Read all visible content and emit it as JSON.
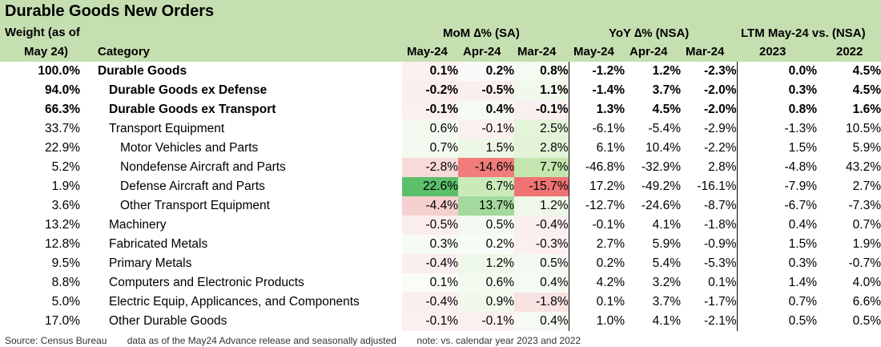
{
  "title": "Durable Goods New Orders",
  "header": {
    "weight_line1": "Weight (as of",
    "weight_line2": "May 24)",
    "category": "Category",
    "mom_group": "MoM ∆% (SA)",
    "yoy_group": "YoY ∆% (NSA)",
    "ltm_group": "LTM May-24 vs. (NSA)",
    "mom_cols": [
      "May-24",
      "Apr-24",
      "Mar-24"
    ],
    "yoy_cols": [
      "May-24",
      "Apr-24",
      "Mar-24"
    ],
    "ltm_cols": [
      "2023",
      "2022"
    ]
  },
  "rows": [
    {
      "weight": "100.0%",
      "category": "Durable Goods",
      "indent": 0,
      "bold": true,
      "mom": [
        "0.1%",
        "0.2%",
        "0.8%"
      ],
      "yoy": [
        "-1.2%",
        "1.2%",
        "-2.3%"
      ],
      "ltm": [
        "0.0%",
        "4.5%"
      ],
      "mom_bg": [
        "#fbf1f1",
        "#fafbf9",
        "#f5fbf1"
      ]
    },
    {
      "weight": "94.0%",
      "category": "Durable Goods ex Defense",
      "indent": 1,
      "bold": true,
      "mom": [
        "-0.2%",
        "-0.5%",
        "1.1%"
      ],
      "yoy": [
        "-1.4%",
        "3.7%",
        "-2.0%"
      ],
      "ltm": [
        "0.3%",
        "4.5%"
      ],
      "mom_bg": [
        "#fbeeee",
        "#fbeeee",
        "#f1f9ec"
      ]
    },
    {
      "weight": "66.3%",
      "category": "Durable Goods ex Transport",
      "indent": 1,
      "bold": true,
      "mom": [
        "-0.1%",
        "0.4%",
        "-0.1%"
      ],
      "yoy": [
        "1.3%",
        "4.5%",
        "-2.0%"
      ],
      "ltm": [
        "0.8%",
        "1.6%"
      ],
      "mom_bg": [
        "#fbf0f0",
        "#f5fbf2",
        "#fbf0f0"
      ]
    },
    {
      "weight": "33.7%",
      "category": "Transport Equipment",
      "indent": 1,
      "bold": false,
      "mom": [
        "0.6%",
        "-0.1%",
        "2.5%"
      ],
      "yoy": [
        "-6.1%",
        "-5.4%",
        "-2.9%"
      ],
      "ltm": [
        "-1.3%",
        "10.5%"
      ],
      "mom_bg": [
        "#f4faf0",
        "#fbf0f0",
        "#e4f4da"
      ]
    },
    {
      "weight": "22.9%",
      "category": "Motor Vehicles and Parts",
      "indent": 2,
      "bold": false,
      "mom": [
        "0.7%",
        "1.5%",
        "2.8%"
      ],
      "yoy": [
        "6.1%",
        "10.4%",
        "-2.2%"
      ],
      "ltm": [
        "1.5%",
        "5.9%"
      ],
      "mom_bg": [
        "#f3faef",
        "#ecf7e5",
        "#e2f3d8"
      ]
    },
    {
      "weight": "5.2%",
      "category": "Nondefense Aircraft and Parts",
      "indent": 2,
      "bold": false,
      "mom": [
        "-2.8%",
        "-14.6%",
        "7.7%"
      ],
      "yoy": [
        "-46.8%",
        "-32.9%",
        "2.8%"
      ],
      "ltm": [
        "-4.8%",
        "43.2%"
      ],
      "mom_bg": [
        "#f8dada",
        "#f07c7c",
        "#c2e6ad"
      ]
    },
    {
      "weight": "1.9%",
      "category": "Defense Aircraft and Parts",
      "indent": 2,
      "bold": false,
      "mom": [
        "22.6%",
        "6.7%",
        "-15.7%"
      ],
      "yoy": [
        "17.2%",
        "-49.2%",
        "-16.1%"
      ],
      "ltm": [
        "-7.9%",
        "2.7%"
      ],
      "mom_bg": [
        "#5cbf6a",
        "#cbeab9",
        "#ef7373"
      ]
    },
    {
      "weight": "3.6%",
      "category": "Other Transport Equipment",
      "indent": 2,
      "bold": false,
      "mom": [
        "-4.4%",
        "13.7%",
        "1.2%"
      ],
      "yoy": [
        "-12.7%",
        "-24.6%",
        "-8.7%"
      ],
      "ltm": [
        "-6.7%",
        "-7.3%"
      ],
      "mom_bg": [
        "#f6cfcf",
        "#a3d99c",
        "#eef8e8"
      ]
    },
    {
      "weight": "13.2%",
      "category": "Machinery",
      "indent": 1,
      "bold": false,
      "mom": [
        "-0.5%",
        "0.5%",
        "-0.4%"
      ],
      "yoy": [
        "-0.1%",
        "4.1%",
        "-1.8%"
      ],
      "ltm": [
        "0.4%",
        "0.7%"
      ],
      "mom_bg": [
        "#fbeded",
        "#f4faf1",
        "#fbeeee"
      ]
    },
    {
      "weight": "12.8%",
      "category": "Fabricated Metals",
      "indent": 1,
      "bold": false,
      "mom": [
        "0.3%",
        "0.2%",
        "-0.3%"
      ],
      "yoy": [
        "2.7%",
        "5.9%",
        "-0.9%"
      ],
      "ltm": [
        "1.5%",
        "1.9%"
      ],
      "mom_bg": [
        "#f6fbf3",
        "#f8fcf6",
        "#fbefef"
      ]
    },
    {
      "weight": "9.5%",
      "category": "Primary Metals",
      "indent": 1,
      "bold": false,
      "mom": [
        "-0.4%",
        "1.2%",
        "0.5%"
      ],
      "yoy": [
        "0.2%",
        "5.4%",
        "-5.3%"
      ],
      "ltm": [
        "0.3%",
        "-0.7%"
      ],
      "mom_bg": [
        "#fbeeee",
        "#eef8e8",
        "#f4faf1"
      ]
    },
    {
      "weight": "8.8%",
      "category": "Computers and Electronic Products",
      "indent": 1,
      "bold": false,
      "mom": [
        "0.1%",
        "0.6%",
        "0.4%"
      ],
      "yoy": [
        "4.2%",
        "3.2%",
        "0.1%"
      ],
      "ltm": [
        "1.4%",
        "4.0%"
      ],
      "mom_bg": [
        "#fafcf8",
        "#f3faef",
        "#f5fbf2"
      ]
    },
    {
      "weight": "5.0%",
      "category": "Electric Equip, Applicances, and Components",
      "indent": 1,
      "bold": false,
      "mom": [
        "-0.4%",
        "0.9%",
        "-1.8%"
      ],
      "yoy": [
        "0.1%",
        "3.7%",
        "-1.7%"
      ],
      "ltm": [
        "0.7%",
        "6.6%"
      ],
      "mom_bg": [
        "#fbeeee",
        "#f1f9ec",
        "#f9e2e2"
      ]
    },
    {
      "weight": "17.0%",
      "category": "Other Durable Goods",
      "indent": 1,
      "bold": false,
      "mom": [
        "-0.1%",
        "-0.1%",
        "0.4%"
      ],
      "yoy": [
        "1.0%",
        "4.1%",
        "-2.1%"
      ],
      "ltm": [
        "0.5%",
        "0.5%"
      ],
      "mom_bg": [
        "#fbf0f0",
        "#fbf0f0",
        "#f5fbf2"
      ]
    }
  ],
  "footer": {
    "source": "Source: Census Bureau",
    "data_note": "data as of the May24 Advance release and seasonally adjusted",
    "note": "note: vs. calendar year 2023 and 2022"
  }
}
